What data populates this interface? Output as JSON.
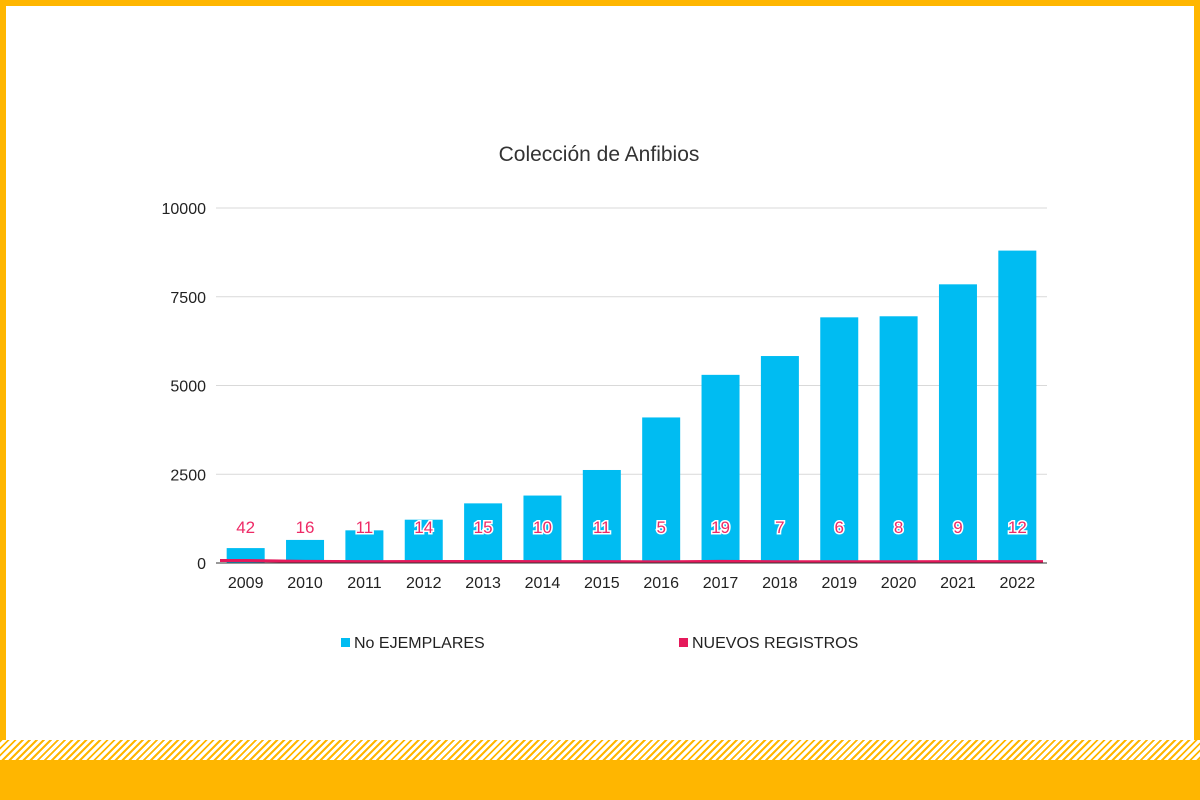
{
  "chart_data": {
    "type": "bar",
    "title": "Colección de Anfibios",
    "categories": [
      "2009",
      "2010",
      "2011",
      "2012",
      "2013",
      "2014",
      "2015",
      "2016",
      "2017",
      "2018",
      "2019",
      "2020",
      "2021",
      "2022"
    ],
    "series": [
      {
        "name": "No EJEMPLARES",
        "color": "#00bcf2",
        "kind": "bar",
        "values": [
          420,
          650,
          920,
          1220,
          1680,
          1900,
          2620,
          4100,
          5300,
          5830,
          6920,
          6950,
          7850,
          8800
        ]
      },
      {
        "name": "NUEVOS REGISTROS",
        "color": "#e5195b",
        "kind": "line",
        "values": [
          42,
          16,
          11,
          14,
          15,
          10,
          11,
          5,
          19,
          7,
          6,
          8,
          9,
          12
        ]
      }
    ],
    "data_labels": [
      "42",
      "16",
      "11",
      "14",
      "15",
      "10",
      "11",
      "5",
      "19",
      "7",
      "6",
      "8",
      "9",
      "12"
    ],
    "ylim": [
      0,
      10000
    ],
    "yticks": [
      0,
      2500,
      5000,
      7500,
      10000
    ],
    "grid": true,
    "legend_position": "bottom"
  },
  "colors": {
    "frame": "#ffb600",
    "gridline": "#d9d9d9",
    "axis": "#333333"
  }
}
